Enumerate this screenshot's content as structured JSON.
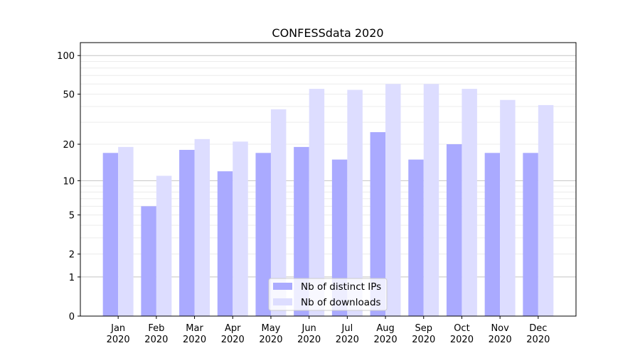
{
  "chart_data": {
    "type": "bar",
    "title": "CONFESSdata 2020",
    "xlabel": "",
    "ylabel": "",
    "yscale": "symlog (log10(1+y))",
    "ylim": [
      0,
      126
    ],
    "yticks": [
      0,
      1,
      2,
      5,
      10,
      20,
      50,
      100
    ],
    "grid": true,
    "legend_placement": "lower center",
    "categories": [
      "Jan\n2020",
      "Feb\n2020",
      "Mar\n2020",
      "Apr\n2020",
      "May\n2020",
      "Jun\n2020",
      "Jul\n2020",
      "Aug\n2020",
      "Sep\n2020",
      "Oct\n2020",
      "Nov\n2020",
      "Dec\n2020"
    ],
    "series": [
      {
        "name": "Nb of distinct IPs",
        "color": "#aaaaff",
        "values": [
          17,
          6,
          18,
          12,
          17,
          19,
          15,
          25,
          15,
          20,
          17,
          17
        ]
      },
      {
        "name": "Nb of downloads",
        "color": "#ddddff",
        "values": [
          19,
          11,
          22,
          21,
          38,
          55,
          54,
          60,
          60,
          55,
          45,
          41
        ]
      }
    ]
  }
}
